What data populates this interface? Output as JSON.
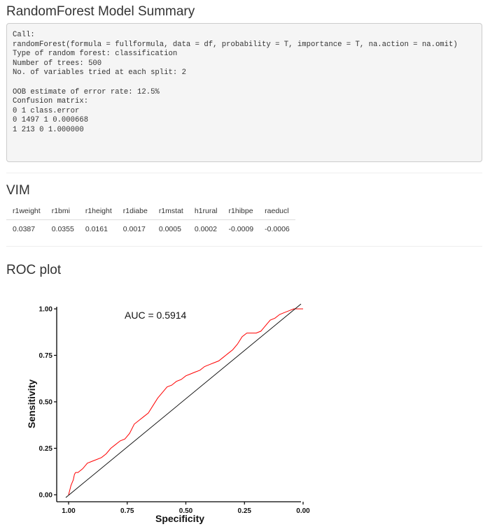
{
  "summary": {
    "title": "RandomForest Model Summary",
    "lines": [
      "Call:",
      "randomForest(formula = fullformula, data = df, probability = T, importance = T, na.action = na.omit)",
      "Type of random forest: classification",
      "Number of trees: 500",
      "No. of variables tried at each split: 2",
      "",
      "OOB estimate of error rate: 12.5%",
      "Confusion matrix:",
      "0 1 class.error",
      "0 1497 1 0.000668",
      "1 213 0 1.000000"
    ]
  },
  "vim": {
    "title": "VIM",
    "headers": [
      "r1weight",
      "r1bmi",
      "r1height",
      "r1diabe",
      "r1mstat",
      "h1rural",
      "r1hibpe",
      "raeducl"
    ],
    "values": [
      "0.0387",
      "0.0355",
      "0.0161",
      "0.0017",
      "0.0005",
      "0.0002",
      "-0.0009",
      "-0.0006"
    ]
  },
  "roc": {
    "title": "ROC plot",
    "chart_data": {
      "type": "line",
      "title": "",
      "xlabel": "Specificity",
      "ylabel": "Sensitivity",
      "annotation": "AUC = 0.5914",
      "x_reversed": true,
      "xlim": [
        1.0,
        0.0
      ],
      "ylim": [
        0.0,
        1.0
      ],
      "x_ticks": [
        "1.00",
        "0.75",
        "0.50",
        "0.25",
        "0.00"
      ],
      "y_ticks": [
        "0.00",
        "0.25",
        "0.50",
        "0.75",
        "1.00"
      ],
      "grid": false,
      "series": [
        {
          "color": "#ff0000",
          "x": [
            1.0,
            0.99,
            0.98,
            0.975,
            0.97,
            0.96,
            0.94,
            0.92,
            0.9,
            0.88,
            0.86,
            0.84,
            0.82,
            0.8,
            0.78,
            0.76,
            0.74,
            0.72,
            0.7,
            0.68,
            0.66,
            0.64,
            0.62,
            0.6,
            0.58,
            0.56,
            0.54,
            0.52,
            0.5,
            0.48,
            0.46,
            0.44,
            0.42,
            0.4,
            0.38,
            0.36,
            0.34,
            0.32,
            0.3,
            0.28,
            0.26,
            0.24,
            0.22,
            0.2,
            0.18,
            0.16,
            0.14,
            0.12,
            0.1,
            0.08,
            0.06,
            0.04,
            0.02,
            0.0
          ],
          "y": [
            0.0,
            0.05,
            0.08,
            0.11,
            0.12,
            0.12,
            0.14,
            0.17,
            0.18,
            0.19,
            0.2,
            0.22,
            0.25,
            0.27,
            0.29,
            0.3,
            0.33,
            0.38,
            0.4,
            0.42,
            0.44,
            0.48,
            0.52,
            0.55,
            0.58,
            0.59,
            0.61,
            0.62,
            0.64,
            0.65,
            0.66,
            0.67,
            0.69,
            0.7,
            0.71,
            0.72,
            0.74,
            0.76,
            0.78,
            0.81,
            0.85,
            0.87,
            0.87,
            0.87,
            0.88,
            0.91,
            0.94,
            0.95,
            0.97,
            0.98,
            0.99,
            1.0,
            1.0,
            1.0
          ]
        },
        {
          "color": "#000000",
          "x": [
            1.0,
            0.0
          ],
          "y": [
            0.0,
            1.0
          ]
        }
      ]
    }
  }
}
